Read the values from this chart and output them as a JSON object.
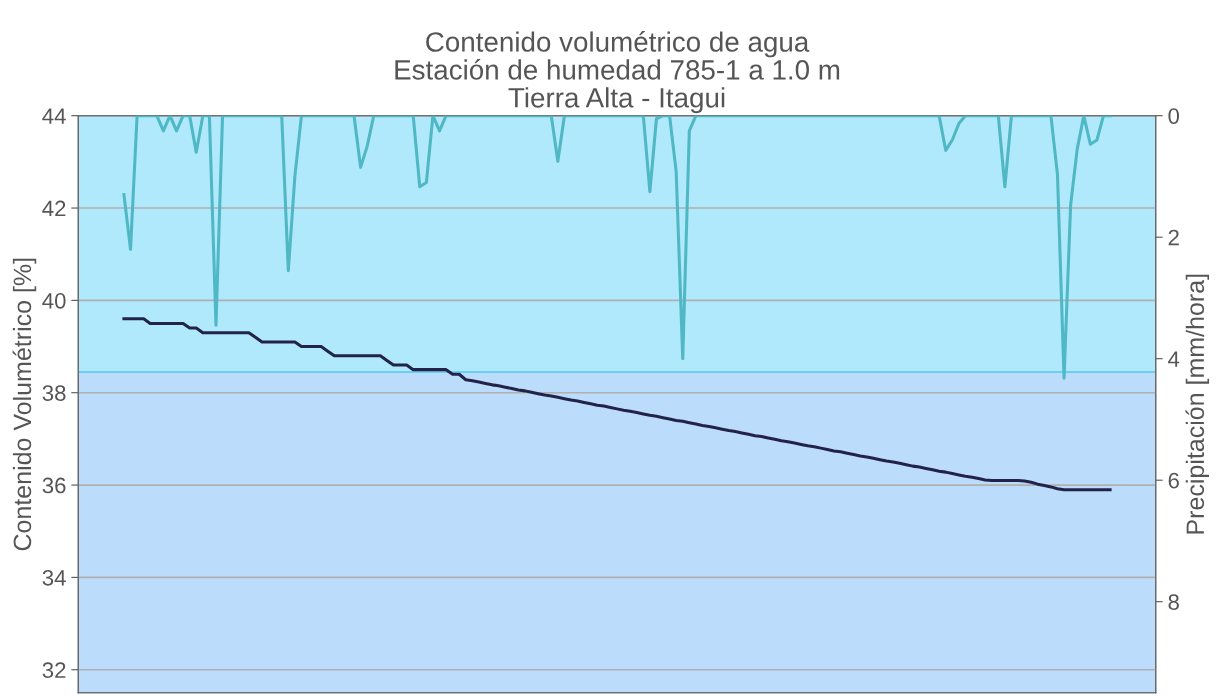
{
  "chart_data": {
    "type": "line",
    "title": "Contenido volumétrico de agua\nEstación de humedad 785-1 a 1.0 m\nTierra Alta - Itagui",
    "ylabel": "Contenido Volumétrico [%]",
    "y2label": "Precipitación [mm/hora]",
    "categories": [
      null,
      null,
      null,
      null,
      null,
      null,
      null,
      null,
      null,
      null,
      null,
      null,
      null,
      null,
      null,
      null,
      null,
      null,
      null,
      null,
      null,
      null,
      null,
      null,
      null,
      null,
      null,
      null,
      null,
      null,
      null,
      null,
      null,
      null,
      null,
      null,
      null,
      null,
      null,
      null,
      null,
      null,
      null,
      null,
      null,
      null,
      null,
      null,
      null,
      null,
      null,
      null,
      null,
      null,
      null,
      null,
      null,
      null,
      null,
      null,
      null,
      null,
      null,
      null,
      null,
      null,
      null,
      null,
      null,
      null,
      null,
      null,
      null,
      null,
      null,
      null,
      null,
      null,
      null,
      null,
      null,
      null,
      null,
      null,
      null,
      null,
      null,
      null,
      null,
      null,
      null,
      null,
      null,
      null,
      null,
      null,
      null,
      null,
      null,
      null,
      null,
      null,
      null,
      null,
      null,
      null,
      null,
      null,
      null,
      null,
      null,
      null,
      null,
      null,
      null,
      null,
      null,
      null,
      null,
      null,
      null,
      null,
      null,
      null,
      null,
      null,
      null,
      null,
      null,
      null,
      null,
      null,
      null,
      null,
      null,
      null,
      null,
      null,
      null,
      null,
      null,
      null,
      null,
      null,
      null,
      null,
      null,
      null,
      null,
      null,
      null
    ],
    "ylim": [
      31.5,
      44
    ],
    "yticks": [
      32,
      34,
      36,
      38,
      40,
      42,
      44
    ],
    "y2lim": [
      9.5,
      0
    ],
    "y2ticks": [
      0,
      2,
      4,
      6,
      8
    ],
    "grid": "y",
    "tick_labels": "y",
    "bands": [
      {
        "axis": "y",
        "from": 38.45,
        "to": 44,
        "color": "#b0e8fc"
      },
      {
        "axis": "y",
        "from": 31.5,
        "to": 38.45,
        "color": "#bcdcfc"
      }
    ],
    "ref_lines": [
      {
        "axis": "y",
        "value": 38.45,
        "color": "#6ccdf5"
      }
    ],
    "series": [
      {
        "color": "#23234a",
        "values": [
          39.6,
          39.6,
          39.6,
          39.6,
          39.5,
          39.5,
          39.5,
          39.5,
          39.5,
          39.5,
          39.4,
          39.4,
          39.3,
          39.3,
          39.3,
          39.3,
          39.3,
          39.3,
          39.3,
          39.3,
          39.2,
          39.1,
          39.1,
          39.1,
          39.1,
          39.1,
          39.1,
          39.0,
          39.0,
          39.0,
          39.0,
          38.9,
          38.8,
          38.8,
          38.8,
          38.8,
          38.8,
          38.8,
          38.8,
          38.8,
          38.7,
          38.6,
          38.6,
          38.6,
          38.5,
          38.5,
          38.5,
          38.5,
          38.5,
          38.5,
          38.4,
          38.4,
          38.28,
          38.26,
          38.23,
          38.2,
          38.17,
          38.15,
          38.12,
          38.09,
          38.06,
          38.04,
          38.01,
          37.98,
          37.95,
          37.93,
          37.9,
          37.87,
          37.84,
          37.82,
          37.79,
          37.76,
          37.73,
          37.71,
          37.68,
          37.65,
          37.62,
          37.6,
          37.57,
          37.54,
          37.51,
          37.49,
          37.46,
          37.43,
          37.4,
          37.38,
          37.35,
          37.32,
          37.29,
          37.27,
          37.24,
          37.21,
          37.18,
          37.16,
          37.13,
          37.1,
          37.07,
          37.05,
          37.02,
          36.99,
          36.96,
          36.94,
          36.91,
          36.88,
          36.85,
          36.83,
          36.8,
          36.77,
          36.74,
          36.72,
          36.69,
          36.66,
          36.63,
          36.61,
          36.58,
          36.55,
          36.52,
          36.5,
          36.47,
          36.44,
          36.41,
          36.39,
          36.36,
          36.33,
          36.3,
          36.28,
          36.25,
          36.22,
          36.19,
          36.17,
          36.14,
          36.11,
          36.1,
          36.1,
          36.1,
          36.1,
          36.1,
          36.09,
          36.06,
          36.02,
          35.99,
          35.96,
          35.92,
          35.9,
          35.9,
          35.9,
          35.9,
          35.9,
          35.9,
          35.9,
          35.9
        ]
      },
      {
        "color": "#4fb8c4",
        "axis": "y2",
        "values": [
          1.3,
          2.2,
          0,
          0,
          0,
          0,
          0.25,
          0,
          0.25,
          0,
          0,
          0.6,
          0,
          0,
          3.45,
          0,
          0,
          0,
          0,
          0,
          0,
          0,
          0,
          0,
          0,
          2.55,
          1.0,
          0,
          0,
          0,
          0,
          0,
          0,
          0,
          0,
          0,
          0.85,
          0.5,
          0,
          0,
          0,
          0,
          0,
          0,
          0,
          1.17,
          1.1,
          0,
          0.25,
          0,
          0,
          0,
          0,
          0,
          0,
          0,
          0,
          0,
          0,
          0,
          0,
          0,
          0,
          0,
          0,
          0,
          0.75,
          0,
          0,
          0,
          0,
          0,
          0,
          0,
          0,
          0,
          0,
          0,
          0,
          0,
          1.25,
          0.05,
          0,
          0,
          0.92,
          4.0,
          0.25,
          0,
          0,
          0,
          0,
          0,
          0,
          0,
          0,
          0,
          0,
          0,
          0,
          0,
          0,
          0,
          0,
          0,
          0,
          0,
          0,
          0,
          0,
          0,
          0,
          0,
          0,
          0,
          0,
          0,
          0,
          0,
          0,
          0,
          0,
          0,
          0,
          0,
          0,
          0.57,
          0.4,
          0.13,
          0,
          0,
          0,
          0,
          0,
          0,
          1.17,
          0,
          0,
          0,
          0,
          0,
          0,
          0,
          0.97,
          4.32,
          1.47,
          0.55,
          0,
          0.47,
          0.4,
          0,
          0
        ]
      }
    ]
  }
}
